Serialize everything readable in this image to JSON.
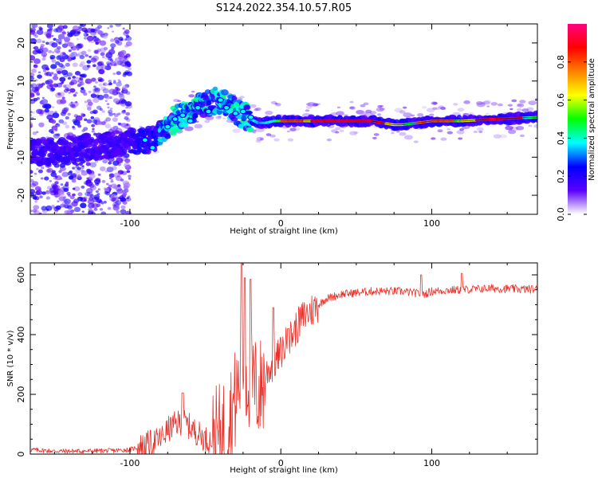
{
  "title": "S124.2022.354.10.57.R05",
  "colors": {
    "snr_line": "#e8322b",
    "ridge_line": "#000000",
    "frame": "#000000"
  },
  "colorbar": {
    "label": "Normalized spectral amplitude",
    "ticks": [
      "0.0",
      "0.2",
      "0.4",
      "0.6",
      "0.8"
    ],
    "tick_values": [
      0.0,
      0.2,
      0.4,
      0.6,
      0.8
    ],
    "range": [
      0,
      1
    ],
    "stops": [
      "#ffffff",
      "#5a00ff",
      "#0000ff",
      "#00ffff",
      "#00ff00",
      "#ffff00",
      "#ff8000",
      "#ff0000",
      "#ff0080"
    ]
  },
  "chart_data": [
    {
      "type": "heatmap",
      "title": "S124.2022.354.10.57.R05",
      "xlabel": "Height of straight line (km)",
      "ylabel": "Frequency (Hz)",
      "xlim": [
        -166,
        170
      ],
      "ylim": [
        -25,
        25
      ],
      "xticks": [
        -100,
        0,
        100
      ],
      "xtick_labels": [
        "-100",
        "0",
        "100"
      ],
      "yticks": [
        -20,
        -10,
        0,
        10,
        20
      ],
      "ytick_labels": [
        "-20",
        "-10",
        "0",
        "10",
        "20"
      ],
      "ridge": {
        "x": [
          -166,
          -140,
          -120,
          -100,
          -90,
          -80,
          -70,
          -60,
          -50,
          -42,
          -35,
          -30,
          -25,
          -20,
          -15,
          -10,
          -5,
          0,
          10,
          30,
          60,
          75,
          80,
          90,
          100,
          120,
          140,
          170
        ],
        "y": [
          -9,
          -8,
          -7,
          -6,
          -6,
          -4,
          0,
          2,
          4,
          5,
          4,
          2,
          1,
          0,
          -1,
          -1,
          -0.5,
          -0.5,
          -0.5,
          -0.5,
          -0.5,
          -1.5,
          -1.5,
          -1,
          -0.5,
          -0.5,
          0,
          0.5
        ]
      },
      "noise_region_x": [
        -166,
        -100
      ]
    },
    {
      "type": "line",
      "title": "",
      "xlabel": "Height of straight line (km)",
      "ylabel": "SNR (10 * v/v)",
      "xlim": [
        -166,
        170
      ],
      "ylim": [
        0,
        640
      ],
      "xticks": [
        -100,
        0,
        100
      ],
      "xtick_labels": [
        "-100",
        "0",
        "100"
      ],
      "yticks": [
        0,
        200,
        400,
        600
      ],
      "ytick_labels": [
        "0",
        "200",
        "400",
        "600"
      ],
      "series": [
        {
          "name": "SNR",
          "x": [
            -166,
            -150,
            -130,
            -110,
            -100,
            -90,
            -80,
            -75,
            -70,
            -65,
            -60,
            -55,
            -50,
            -45,
            -40,
            -35,
            -30,
            -27,
            -25,
            -23,
            -20,
            -18,
            -15,
            -12,
            -10,
            -5,
            0,
            5,
            10,
            15,
            20,
            25,
            30,
            40,
            50,
            60,
            80,
            95,
            100,
            110,
            120,
            140,
            160,
            170
          ],
          "values": [
            15,
            10,
            10,
            12,
            15,
            30,
            50,
            80,
            100,
            110,
            90,
            70,
            50,
            45,
            60,
            110,
            180,
            250,
            300,
            260,
            250,
            230,
            210,
            230,
            270,
            300,
            340,
            380,
            420,
            460,
            480,
            500,
            520,
            535,
            540,
            545,
            545,
            535,
            545,
            548,
            550,
            555,
            552,
            552
          ]
        }
      ],
      "spikes": [
        {
          "x": -65,
          "value": 205
        },
        {
          "x": -26,
          "value": 640
        },
        {
          "x": -24,
          "value": 590
        },
        {
          "x": -20,
          "value": 585
        },
        {
          "x": -5,
          "value": 490
        },
        {
          "x": 5,
          "value": 420
        },
        {
          "x": 93,
          "value": 600
        },
        {
          "x": 120,
          "value": 605
        }
      ]
    }
  ]
}
